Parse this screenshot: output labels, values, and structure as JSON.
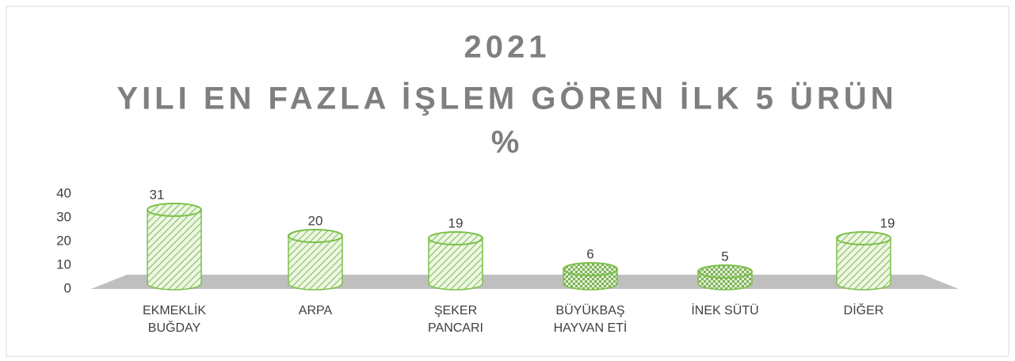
{
  "chart_data": {
    "type": "cylinder-bar",
    "title": [
      "2021",
      "YILI EN FAZLA İŞLEM GÖREN İLK 5 ÜRÜN",
      "%"
    ],
    "categories": [
      "EKMEKLİK BUĞDAY",
      "ARPA",
      "ŞEKER PANCARI",
      "BÜYÜKBAŞ HAYVAN ETİ",
      "İNEK SÜTÜ",
      "DİĞER"
    ],
    "values": [
      31,
      20,
      19,
      6,
      5,
      19
    ],
    "color": "#7cc04a",
    "ylim": [
      0,
      40
    ],
    "yticks": [
      0,
      10,
      20,
      30,
      40
    ]
  }
}
